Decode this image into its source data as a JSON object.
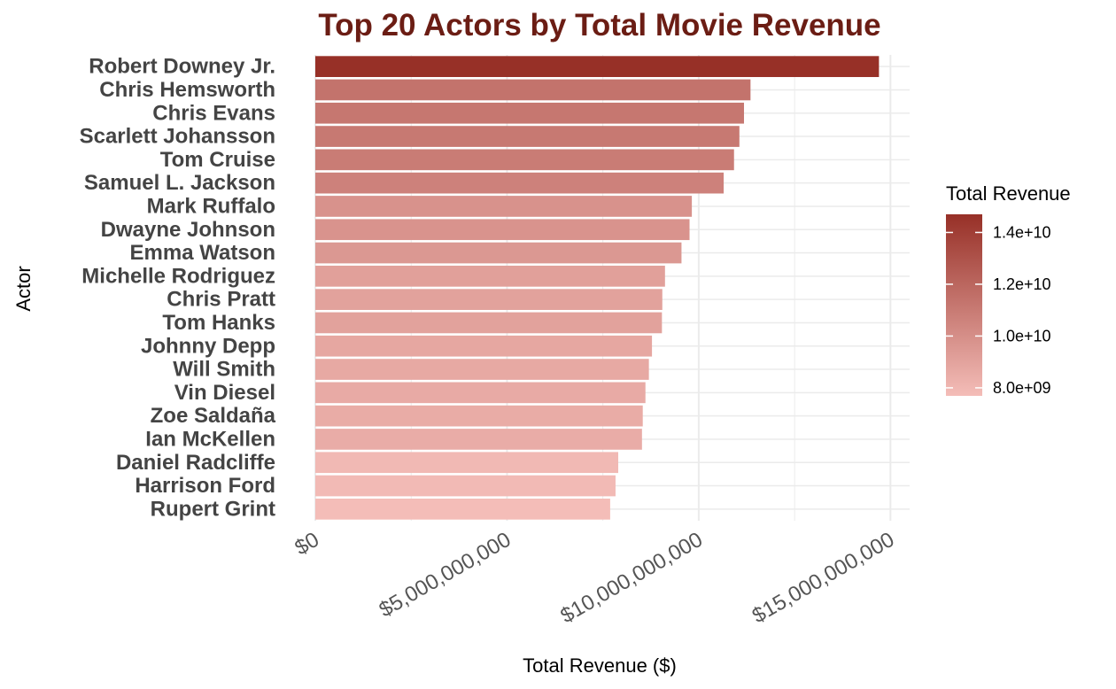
{
  "chart_data": {
    "type": "bar",
    "orientation": "horizontal",
    "title": "Top 20 Actors by Total Movie Revenue",
    "xlabel": "Total Revenue ($)",
    "ylabel": "Actor",
    "xlim": [
      0,
      15500000000
    ],
    "x_ticks": [
      0,
      5000000000,
      10000000000,
      15000000000
    ],
    "x_tick_labels": [
      "$0",
      "$5,000,000,000",
      "$10,000,000,000",
      "$15,000,000,000"
    ],
    "grid": true,
    "categories": [
      "Robert Downey Jr.",
      "Chris Hemsworth",
      "Chris Evans",
      "Scarlett Johansson",
      "Tom Cruise",
      "Samuel L. Jackson",
      "Mark Ruffalo",
      "Dwayne Johnson",
      "Emma Watson",
      "Michelle Rodriguez",
      "Chris Pratt",
      "Tom Hanks",
      "Johnny Depp",
      "Will Smith",
      "Vin Diesel",
      "Zoe Saldaña",
      "Ian McKellen",
      "Daniel Radcliffe",
      "Harrison Ford",
      "Rupert Grint"
    ],
    "values": [
      14700000000,
      11350000000,
      11180000000,
      11060000000,
      10920000000,
      10650000000,
      9820000000,
      9760000000,
      9550000000,
      9120000000,
      9050000000,
      9040000000,
      8780000000,
      8700000000,
      8610000000,
      8540000000,
      8520000000,
      7900000000,
      7830000000,
      7690000000
    ],
    "legend": {
      "title": "Total Revenue",
      "placement": "right",
      "tick_values": [
        14000000000,
        12000000000,
        10000000000,
        8000000000
      ],
      "tick_labels": [
        "1.4e+10",
        "1.2e+10",
        "1.0e+10",
        "8.0e+09"
      ],
      "range": [
        7690000000,
        14700000000
      ]
    },
    "colors": {
      "low": "#f4bdb8",
      "high": "#973027",
      "title": "#6b1d14",
      "grid": "#ebebeb"
    }
  }
}
